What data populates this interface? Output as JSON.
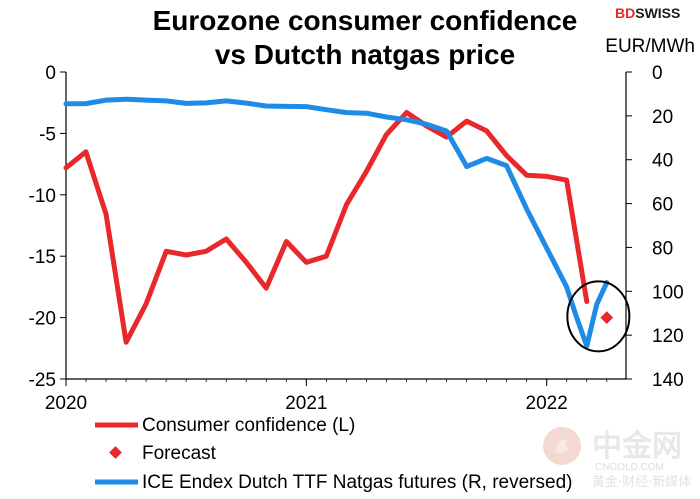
{
  "brand": {
    "name_colored": "BD",
    "name_rest": "SWISS",
    "accent": "#e8282b",
    "rest": "#1c1c1c"
  },
  "watermark": {
    "cn_text": "中金网",
    "en_text": "CNGOLD.COM",
    "cn_small": "黄金·财经·新媒体"
  },
  "chart_data": {
    "type": "line",
    "title_lines": [
      "Eurozone consumer confidence",
      "vs Dutcth natgas price"
    ],
    "right_axis_label": "EUR/MWh",
    "x_ticks": [
      {
        "label": "2020",
        "t": 2020.0
      },
      {
        "label": "2021",
        "t": 2021.0
      },
      {
        "label": "2022",
        "t": 2022.0
      }
    ],
    "xlim": [
      2020.0,
      2022.33
    ],
    "left_axis": {
      "ylim": [
        -25,
        0
      ],
      "ticks": [
        0,
        -5,
        -10,
        -15,
        -20,
        -25
      ],
      "labels": [
        "0",
        "-5",
        "-10",
        "-15",
        "-20",
        "-25"
      ]
    },
    "right_axis": {
      "ylim": [
        0,
        140
      ],
      "reversed": true,
      "ticks": [
        0,
        20,
        40,
        60,
        80,
        100,
        120,
        140
      ],
      "labels": [
        "0",
        "20",
        "40",
        "60",
        "80",
        "100",
        "120",
        "140"
      ]
    },
    "series": [
      {
        "name": "Consumer confidence (L)",
        "axis": "left",
        "color": "#e8282b",
        "kind": "line",
        "x": [
          2020.0,
          2020.083,
          2020.167,
          2020.25,
          2020.333,
          2020.417,
          2020.5,
          2020.583,
          2020.667,
          2020.75,
          2020.833,
          2020.917,
          2021.0,
          2021.083,
          2021.167,
          2021.25,
          2021.333,
          2021.417,
          2021.5,
          2021.583,
          2021.667,
          2021.75,
          2021.833,
          2021.917,
          2022.0,
          2022.083,
          2022.167,
          2022.25
        ],
        "values": [
          -7.8,
          -6.5,
          -11.6,
          -22.0,
          -18.9,
          -14.6,
          -14.9,
          -14.6,
          -13.6,
          -15.5,
          -17.6,
          -13.8,
          -15.5,
          -15.0,
          -10.8,
          -8.1,
          -5.1,
          -3.3,
          -4.4,
          -5.3,
          -4.0,
          -4.8,
          -6.8,
          -8.4,
          -8.5,
          -8.8,
          -18.7,
          null
        ]
      },
      {
        "name": "Forecast",
        "axis": "left",
        "color": "#e8282b",
        "kind": "marker",
        "x": [
          2022.25
        ],
        "values": [
          -20.0
        ]
      },
      {
        "name": "ICE Endex Dutch TTF Natgas futures (R, reversed)",
        "axis": "right",
        "color": "#1e8be6",
        "kind": "line",
        "x": [
          2020.0,
          2020.083,
          2020.167,
          2020.25,
          2020.333,
          2020.417,
          2020.5,
          2020.583,
          2020.667,
          2020.75,
          2020.833,
          2020.917,
          2021.0,
          2021.083,
          2021.167,
          2021.25,
          2021.333,
          2021.417,
          2021.5,
          2021.583,
          2021.667,
          2021.75,
          2021.833,
          2021.917,
          2022.0,
          2022.083,
          2022.125,
          2022.167,
          2022.208,
          2022.25
        ],
        "values": [
          14.5,
          14.4,
          12.8,
          12.4,
          12.8,
          13.2,
          14.3,
          14.1,
          13.2,
          14.2,
          15.5,
          15.7,
          15.8,
          17.2,
          18.5,
          18.8,
          20.5,
          21.8,
          23.8,
          26.9,
          43.1,
          39.4,
          42.7,
          62.5,
          80.3,
          98.0,
          112.0,
          125.0,
          106.0,
          96.0
        ]
      }
    ],
    "legend": {
      "position": "bottom-left",
      "entries": [
        "Consumer confidence (L)",
        "Forecast",
        "ICE Endex Dutch TTF Natgas futures (R, reversed)"
      ]
    },
    "annotations": [
      {
        "type": "ellipse",
        "label": "",
        "x": 2022.215,
        "left_value": -19.9
      }
    ]
  }
}
